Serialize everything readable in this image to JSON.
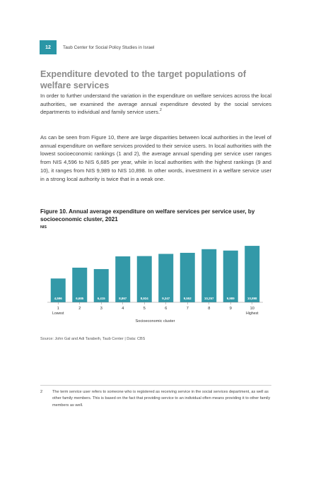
{
  "header": {
    "page_number": "12",
    "publisher": "Taub Center for Social Policy Studies in Israel"
  },
  "section": {
    "title": "Expenditure devoted to the target populations of welfare services"
  },
  "body": {
    "paragraph1": "In order to further understand the variation in the expenditure on welfare services across the local authorities, we examined the average annual expenditure devoted by the social services departments to individual and family service users.",
    "paragraph1_ref": "2",
    "paragraph2": "As can be seen from Figure 10, there are large disparities between local authorities in the level of annual expenditure on welfare services provided to their service users. In local authorities with the lowest socioeconomic rankings (1 and 2), the average annual spending per service user ranges from NIS 4,596 to NIS 6,685 per year, while in local authorities with the highest rankings (9 and 10), it ranges from NIS 9,989 to NIS 10,898. In other words, investment in a welfare service user in a strong local authority is twice that in a weak one."
  },
  "figure": {
    "title": "Figure 10. Annual average expenditure on welfare services per service user, by socioeconomic cluster, 2021",
    "unit": "NIS",
    "source": "Source: John Gal and Adi Tarabeih, Taub Center | Data: CBS"
  },
  "chart_data": {
    "type": "bar",
    "categories": [
      "1",
      "2",
      "3",
      "4",
      "5",
      "6",
      "7",
      "8",
      "9",
      "10"
    ],
    "values": [
      4596,
      6685,
      6415,
      8867,
      8924,
      9347,
      9552,
      10257,
      9989,
      10898
    ],
    "value_labels": [
      "4,596",
      "6,685",
      "6,415",
      "8,867",
      "8,924",
      "9,347",
      "9,552",
      "10,257",
      "9,989",
      "10,898"
    ],
    "category_sublabels": {
      "1": "Lowest",
      "10": "Highest"
    },
    "xlabel": "Socioeconomic cluster",
    "ylabel": "NIS",
    "ylim": [
      0,
      12000
    ],
    "grid": false,
    "color": "#3399a8"
  },
  "footnote": {
    "number": "2",
    "text": "The term service user refers to someone who is registered as receiving service in the social services department, as well as other family members. This is based on the fact that providing service to an individual often means providing it to other family members as well."
  }
}
